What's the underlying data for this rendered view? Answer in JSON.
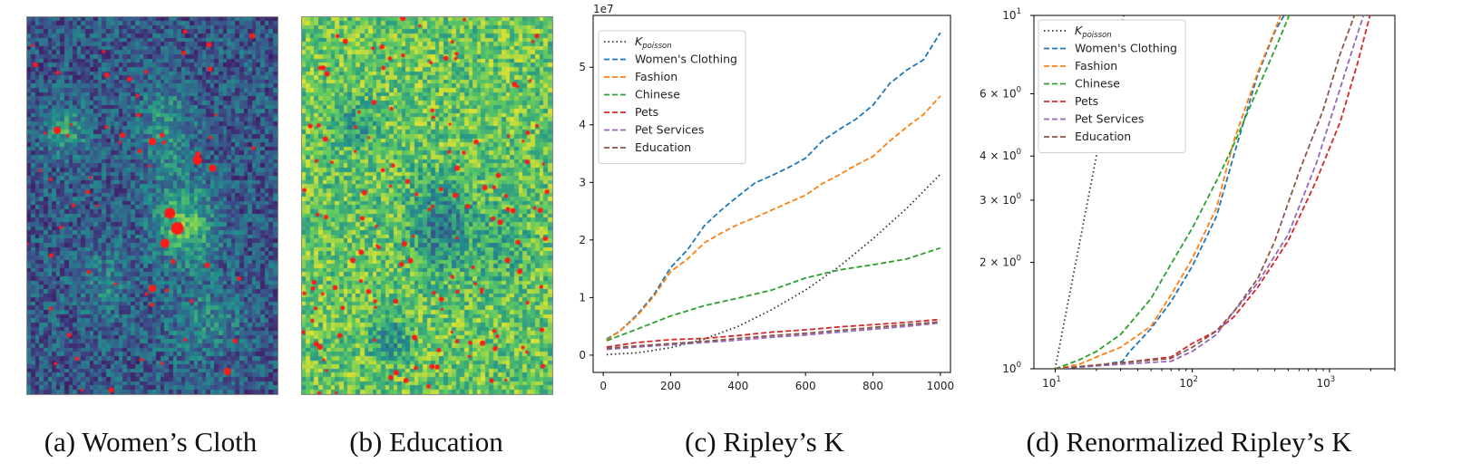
{
  "panels": [
    {
      "id": "a",
      "caption": "(a) Women’s Cloth",
      "kind": "heatmap",
      "seed": 11,
      "hotspots": "women"
    },
    {
      "id": "b",
      "caption": "(b) Education",
      "kind": "heatmap",
      "seed": 29,
      "hotspots": "education"
    },
    {
      "id": "c",
      "caption": "(c) Ripley’s K"
    },
    {
      "id": "d",
      "caption": "(d) Renormalized Ripley’s K"
    }
  ],
  "colors": {
    "poisson": "#333333",
    "women": "#1f77b4",
    "fashion": "#ff7f0e",
    "chinese": "#2ca02c",
    "pets": "#d62728",
    "petservices": "#9467bd",
    "education": "#8c564b",
    "hotspot": "#ff1a1a"
  },
  "chart_data": [
    {
      "type": "heatmap",
      "title": "(a) Women’s Cloth",
      "colormap": "viridis",
      "grid": [
        60,
        90
      ],
      "description_values": "spatial density of Women's Clothing stores; red = hotspots"
    },
    {
      "type": "heatmap",
      "title": "(b) Education",
      "colormap": "viridis",
      "grid": [
        60,
        90
      ],
      "description_values": "spatial density of Education stores; red = hotspots"
    },
    {
      "type": "line",
      "title": "(c) Ripley’s K",
      "xlabel": "",
      "ylabel": "",
      "offset_text": "1e7",
      "xlim": [
        -30,
        1030
      ],
      "ylim": [
        -0.3,
        5.9
      ],
      "xticks": [
        0,
        200,
        400,
        600,
        800,
        1000
      ],
      "yticks": [
        0,
        1,
        2,
        3,
        4,
        5
      ],
      "legend_position": "top-left",
      "series": [
        {
          "name": "K_poisson",
          "label_main": "K",
          "label_sub": "poisson",
          "style": "dotted",
          "color": "#333333",
          "x": [
            10,
            100,
            200,
            300,
            400,
            500,
            600,
            700,
            800,
            900,
            1000
          ],
          "y": [
            0.01,
            0.04,
            0.13,
            0.28,
            0.5,
            0.79,
            1.13,
            1.54,
            2.02,
            2.55,
            3.14
          ]
        },
        {
          "name": "Women's Clothing",
          "style": "dashed",
          "color": "#1f77b4",
          "x": [
            10,
            50,
            100,
            150,
            200,
            250,
            300,
            350,
            400,
            450,
            500,
            550,
            600,
            650,
            700,
            750,
            800,
            850,
            900,
            950,
            1000
          ],
          "y": [
            0.28,
            0.42,
            0.7,
            1.05,
            1.52,
            1.83,
            2.25,
            2.52,
            2.76,
            2.99,
            3.12,
            3.26,
            3.42,
            3.72,
            3.92,
            4.1,
            4.34,
            4.72,
            4.95,
            5.13,
            5.6
          ]
        },
        {
          "name": "Fashion",
          "style": "dashed",
          "color": "#ff7f0e",
          "x": [
            10,
            50,
            100,
            150,
            200,
            250,
            300,
            350,
            400,
            450,
            500,
            550,
            600,
            650,
            700,
            750,
            800,
            850,
            900,
            950,
            1000
          ],
          "y": [
            0.26,
            0.42,
            0.68,
            1.02,
            1.45,
            1.67,
            1.95,
            2.12,
            2.27,
            2.39,
            2.52,
            2.65,
            2.78,
            2.98,
            3.13,
            3.3,
            3.45,
            3.72,
            3.96,
            4.18,
            4.5
          ]
        },
        {
          "name": "Chinese",
          "style": "dashed",
          "color": "#2ca02c",
          "x": [
            10,
            100,
            200,
            300,
            400,
            500,
            600,
            700,
            800,
            900,
            1000
          ],
          "y": [
            0.25,
            0.45,
            0.68,
            0.86,
            0.99,
            1.13,
            1.34,
            1.48,
            1.57,
            1.67,
            1.86
          ]
        },
        {
          "name": "Pets",
          "style": "dashed",
          "color": "#d62728",
          "x": [
            10,
            100,
            200,
            300,
            400,
            500,
            600,
            700,
            800,
            900,
            1000
          ],
          "y": [
            0.14,
            0.22,
            0.27,
            0.29,
            0.34,
            0.4,
            0.44,
            0.49,
            0.53,
            0.57,
            0.62
          ]
        },
        {
          "name": "Pet Services",
          "style": "dashed",
          "color": "#9467bd",
          "x": [
            10,
            100,
            200,
            300,
            400,
            500,
            600,
            700,
            800,
            900,
            1000
          ],
          "y": [
            0.1,
            0.14,
            0.18,
            0.22,
            0.26,
            0.31,
            0.35,
            0.4,
            0.45,
            0.5,
            0.56
          ]
        },
        {
          "name": "Education",
          "style": "dashed",
          "color": "#8c564b",
          "x": [
            10,
            100,
            200,
            300,
            400,
            500,
            600,
            700,
            800,
            900,
            1000
          ],
          "y": [
            0.12,
            0.16,
            0.2,
            0.24,
            0.29,
            0.34,
            0.38,
            0.43,
            0.48,
            0.53,
            0.58
          ]
        }
      ]
    },
    {
      "type": "line",
      "title": "(d) Renormalized Ripley’s K",
      "xscale": "log",
      "yscale": "log",
      "xlim": [
        7,
        3000
      ],
      "ylim": [
        1,
        10
      ],
      "xticks": [
        {
          "value": 10,
          "base": "10",
          "exp": "1"
        },
        {
          "value": 100,
          "base": "10",
          "exp": "2"
        },
        {
          "value": 1000,
          "base": "10",
          "exp": "3"
        }
      ],
      "yticks": [
        {
          "value": 1,
          "main": "10",
          "exp": "0"
        },
        {
          "value": 2,
          "main": "2 × 10",
          "exp": "0"
        },
        {
          "value": 3,
          "main": "3 × 10",
          "exp": "0"
        },
        {
          "value": 4,
          "main": "4 × 10",
          "exp": "0"
        },
        {
          "value": 6,
          "main": "6 × 10",
          "exp": "0"
        },
        {
          "value": 10,
          "main": "10",
          "exp": "1"
        }
      ],
      "legend_position": "top-left",
      "series": [
        {
          "name": "K_poisson",
          "label_main": "K",
          "label_sub": "poisson",
          "style": "dotted",
          "color": "#333333",
          "x": [
            10,
            14,
            20,
            27,
            32
          ],
          "y": [
            1.0,
            1.96,
            4.0,
            7.3,
            10.2
          ]
        },
        {
          "name": "Women's Clothing",
          "style": "dashed",
          "color": "#1f77b4",
          "x": [
            10,
            20,
            31,
            35,
            50,
            70,
            100,
            150,
            200,
            300,
            400,
            480
          ],
          "y": [
            1.0,
            1.02,
            1.05,
            1.12,
            1.3,
            1.55,
            1.95,
            2.7,
            4.0,
            6.8,
            9.0,
            10.2
          ]
        },
        {
          "name": "Fashion",
          "style": "dashed",
          "color": "#ff7f0e",
          "x": [
            10,
            15,
            20,
            30,
            50,
            70,
            100,
            150,
            200,
            300,
            400,
            450
          ],
          "y": [
            1.0,
            1.03,
            1.08,
            1.15,
            1.32,
            1.62,
            2.05,
            2.85,
            4.4,
            6.9,
            9.1,
            10.2
          ]
        },
        {
          "name": "Chinese",
          "style": "dashed",
          "color": "#2ca02c",
          "x": [
            10,
            15,
            20,
            30,
            50,
            70,
            100,
            150,
            200,
            300,
            400,
            520
          ],
          "y": [
            1.0,
            1.06,
            1.12,
            1.25,
            1.58,
            1.98,
            2.5,
            3.4,
            4.3,
            6.2,
            8.0,
            10.2
          ]
        },
        {
          "name": "Pets",
          "style": "dashed",
          "color": "#d62728",
          "x": [
            10,
            30,
            70,
            100,
            150,
            200,
            300,
            500,
            800,
            1200,
            1600,
            2000
          ],
          "y": [
            1.0,
            1.04,
            1.08,
            1.18,
            1.28,
            1.4,
            1.7,
            2.3,
            3.4,
            5.0,
            7.3,
            10.2
          ]
        },
        {
          "name": "Pet Services",
          "style": "dashed",
          "color": "#9467bd",
          "x": [
            10,
            30,
            70,
            100,
            150,
            200,
            300,
            500,
            800,
            1100,
            1500,
            1800
          ],
          "y": [
            1.0,
            1.03,
            1.05,
            1.12,
            1.25,
            1.45,
            1.75,
            2.4,
            3.8,
            5.6,
            8.2,
            10.2
          ]
        },
        {
          "name": "Education",
          "style": "dashed",
          "color": "#8c564b",
          "x": [
            10,
            30,
            70,
            100,
            150,
            200,
            300,
            400,
            600,
            900,
            1200,
            1550
          ],
          "y": [
            1.0,
            1.04,
            1.07,
            1.15,
            1.28,
            1.45,
            1.8,
            2.3,
            3.6,
            5.4,
            7.8,
            10.2
          ]
        }
      ]
    }
  ]
}
